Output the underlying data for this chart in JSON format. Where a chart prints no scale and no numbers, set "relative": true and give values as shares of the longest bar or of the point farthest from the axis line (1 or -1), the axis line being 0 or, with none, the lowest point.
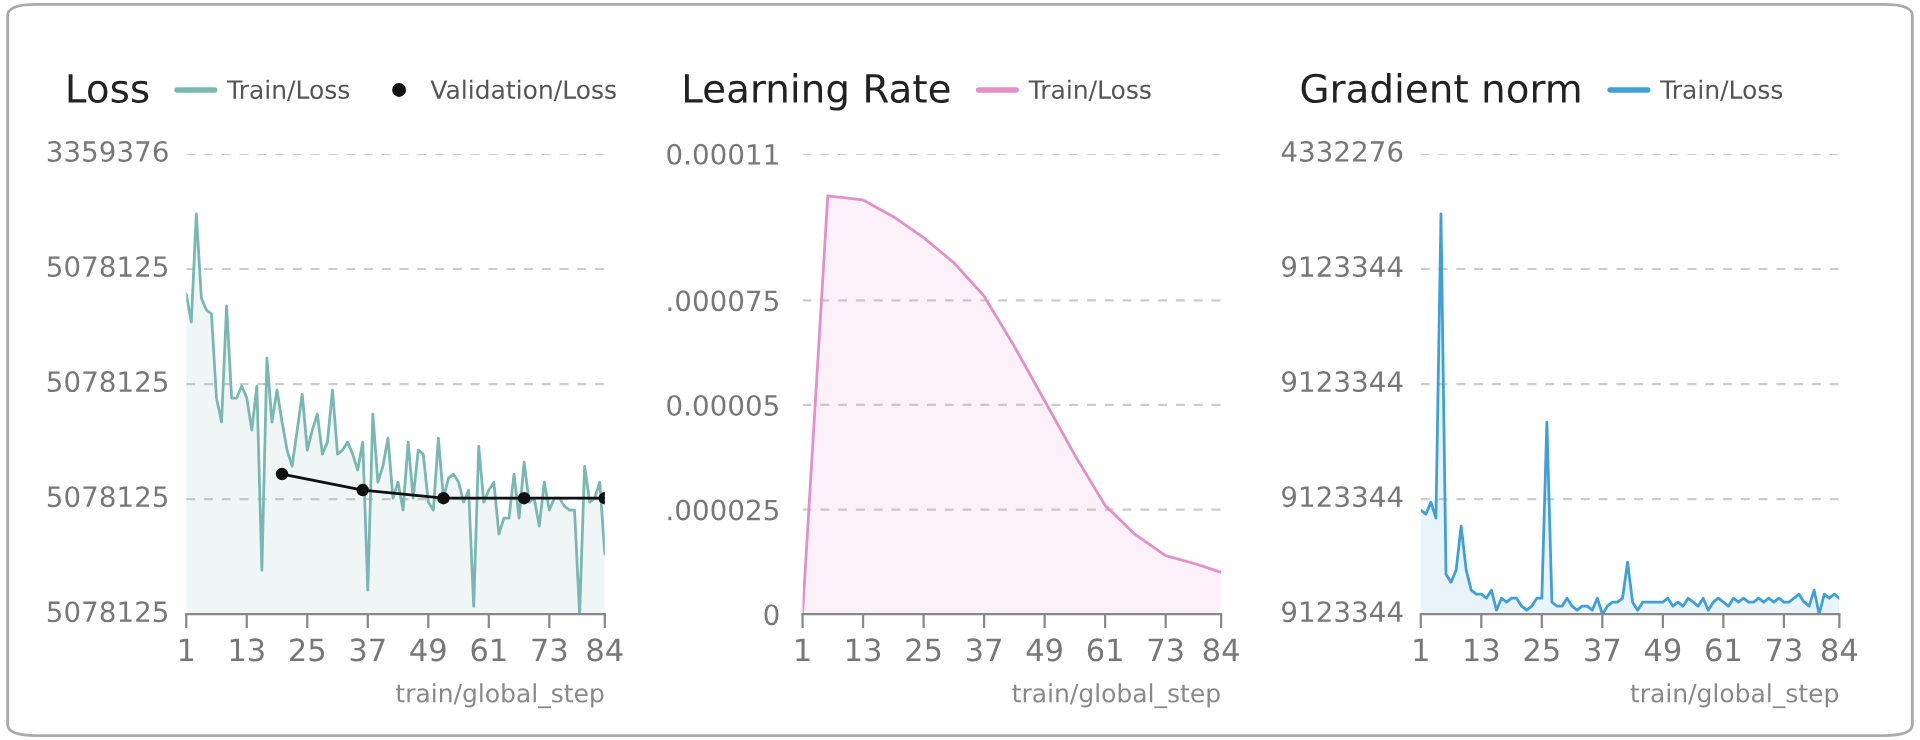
{
  "chart_data": [
    {
      "type": "area",
      "title": "Loss",
      "xlabel": "train/global_step",
      "legend": "top",
      "grid": "y",
      "line_style": "solid",
      "relative": true,
      "xlim": [
        1,
        84
      ],
      "xticks": [
        1,
        13,
        25,
        37,
        49,
        61,
        73,
        84
      ],
      "annotations": [
        "5078125",
        "5078125",
        "5078125",
        "5078125",
        "3359376"
      ],
      "series": [
        {
          "name": "Train/Loss",
          "color": "#78b8b0",
          "marker": "none",
          "x": [
            1,
            2,
            3,
            4,
            5,
            6,
            7,
            8,
            9,
            10,
            11,
            12,
            13,
            14,
            15,
            16,
            17,
            18,
            19,
            20,
            21,
            22,
            23,
            24,
            25,
            26,
            27,
            28,
            29,
            30,
            31,
            32,
            33,
            34,
            35,
            36,
            37,
            38,
            39,
            40,
            41,
            42,
            43,
            44,
            45,
            46,
            47,
            48,
            49,
            50,
            51,
            52,
            53,
            54,
            55,
            56,
            57,
            58,
            59,
            60,
            61,
            62,
            63,
            64,
            65,
            66,
            67,
            68,
            69,
            70,
            71,
            72,
            73,
            74,
            75,
            76,
            77,
            78,
            79,
            80,
            81,
            82,
            83,
            84
          ],
          "values": [
            0.8,
            0.73,
            1,
            0.79,
            0.76,
            0.75,
            0.54,
            0.48,
            0.77,
            0.54,
            0.54,
            0.57,
            0.54,
            0.46,
            0.57,
            0.11,
            0.64,
            0.48,
            0.56,
            0.48,
            0.41,
            0.37,
            0.46,
            0.55,
            0.41,
            0.46,
            0.5,
            0.4,
            0.43,
            0.56,
            0.4,
            0.41,
            0.43,
            0.4,
            0.36,
            0.43,
            0.06,
            0.5,
            0.33,
            0.37,
            0.44,
            0.29,
            0.33,
            0.26,
            0.43,
            0.29,
            0.41,
            0.4,
            0.28,
            0.26,
            0.44,
            0.29,
            0.34,
            0.35,
            0.33,
            0.28,
            0.31,
            0.02,
            0.42,
            0.28,
            0.31,
            0.33,
            0.2,
            0.24,
            0.24,
            0.35,
            0.24,
            0.38,
            0.28,
            0.29,
            0.22,
            0.33,
            0.26,
            0.29,
            0.29,
            0.27,
            0.26,
            0.26,
            0,
            0.37,
            0.28,
            0.29,
            0.33,
            0.15
          ]
        },
        {
          "name": "Validation/Loss",
          "type": "line",
          "color": "#111111",
          "marker": "circle",
          "x": [
            20,
            36,
            52,
            68,
            84
          ],
          "values": [
            0.35,
            0.31,
            0.29,
            0.29,
            0.29
          ]
        }
      ]
    },
    {
      "type": "area",
      "title": "Learning Rate",
      "xlabel": "train/global_step",
      "legend": "top",
      "grid": "y",
      "line_style": "solid",
      "xlim": [
        1,
        84
      ],
      "xticks": [
        1,
        13,
        25,
        37,
        49,
        61,
        73,
        84
      ],
      "ylim": [
        0,
        0.00011
      ],
      "yticks": [
        0,
        {
          "value": 2.5e-05,
          "label": ".000025"
        },
        {
          "value": 5e-05,
          "label": "0.00005"
        },
        {
          "value": 7.5e-05,
          "label": ".000075"
        },
        {
          "value": 0.00011,
          "label": "0.00011"
        }
      ],
      "series": [
        {
          "name": "Train/Loss",
          "color": "#e38fc8",
          "marker": "none",
          "x": [
            1,
            6,
            13,
            19,
            25,
            31,
            37,
            43,
            49,
            55,
            61,
            67,
            73,
            79,
            84
          ],
          "values": [
            0,
            0.0001,
            9.9e-05,
            9.5e-05,
            9e-05,
            8.4e-05,
            7.6e-05,
            6.4e-05,
            5.1e-05,
            3.8e-05,
            2.6e-05,
            1.9e-05,
            1.4e-05,
            1.2e-05,
            1e-05
          ]
        }
      ]
    },
    {
      "type": "area",
      "title": "Gradient norm",
      "xlabel": "train/global_step",
      "legend": "top",
      "grid": "y",
      "line_style": "solid",
      "relative": true,
      "xlim": [
        1,
        84
      ],
      "xticks": [
        1,
        13,
        25,
        37,
        49,
        61,
        73,
        84
      ],
      "annotations": [
        "9123344",
        "9123344",
        "9123344",
        "9123344",
        "4332276"
      ],
      "series": [
        {
          "name": "Train/Loss",
          "color": "#3fa0d8",
          "marker": "none",
          "x": [
            1,
            2,
            3,
            4,
            5,
            6,
            7,
            8,
            9,
            10,
            11,
            12,
            13,
            14,
            15,
            16,
            17,
            18,
            19,
            20,
            21,
            22,
            23,
            24,
            25,
            26,
            27,
            28,
            29,
            30,
            31,
            32,
            33,
            34,
            35,
            36,
            37,
            38,
            39,
            40,
            41,
            42,
            43,
            44,
            45,
            46,
            47,
            48,
            49,
            50,
            51,
            52,
            53,
            54,
            55,
            56,
            57,
            58,
            59,
            60,
            61,
            62,
            63,
            64,
            65,
            66,
            67,
            68,
            69,
            70,
            71,
            72,
            73,
            74,
            75,
            76,
            77,
            78,
            79,
            80,
            81,
            82,
            83,
            84
          ],
          "values": [
            0.26,
            0.25,
            0.28,
            0.24,
            1,
            0.1,
            0.08,
            0.11,
            0.22,
            0.11,
            0.06,
            0.05,
            0.05,
            0.04,
            0.06,
            0.01,
            0.04,
            0.03,
            0.04,
            0.04,
            0.02,
            0.01,
            0.02,
            0.04,
            0.04,
            0.48,
            0.03,
            0.02,
            0.02,
            0.04,
            0.02,
            0.01,
            0.02,
            0.02,
            0.01,
            0.04,
            0,
            0.02,
            0.03,
            0.03,
            0.04,
            0.13,
            0.03,
            0.01,
            0.03,
            0.03,
            0.03,
            0.03,
            0.03,
            0.04,
            0.02,
            0.03,
            0.02,
            0.04,
            0.03,
            0.02,
            0.04,
            0.01,
            0.03,
            0.04,
            0.03,
            0.02,
            0.04,
            0.03,
            0.04,
            0.03,
            0.03,
            0.04,
            0.03,
            0.04,
            0.03,
            0.04,
            0.03,
            0.03,
            0.04,
            0.05,
            0.03,
            0.02,
            0.06,
            0,
            0.05,
            0.04,
            0.05,
            0.04
          ]
        }
      ]
    }
  ]
}
